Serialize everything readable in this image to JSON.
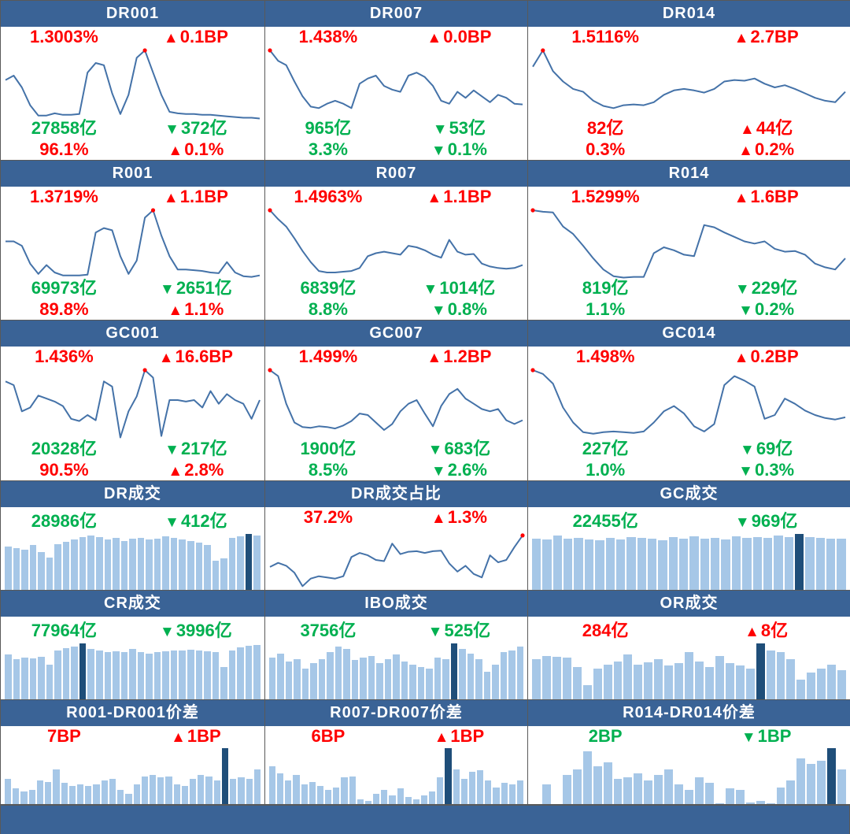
{
  "colors": {
    "header_bg": "#3A6396",
    "footer_bg": "#3A6396",
    "line": "#4472A8",
    "bar_light": "#A6C7E7",
    "bar_dark": "#1F4E79",
    "up_red": "#FF0000",
    "down_green": "#00B050",
    "marker": "#FF0000",
    "border": "#595959"
  },
  "icons": {
    "up": "▲",
    "down": "▼"
  },
  "chart_data": [
    {
      "title": "DR001",
      "type": "line",
      "panel_kind": "rate",
      "marker_index": 17,
      "values": [
        0.6,
        0.66,
        0.5,
        0.26,
        0.12,
        0.12,
        0.15,
        0.13,
        0.13,
        0.14,
        0.7,
        0.83,
        0.8,
        0.42,
        0.14,
        0.4,
        0.9,
        1.0,
        0.7,
        0.4,
        0.17,
        0.15,
        0.14,
        0.14,
        0.13,
        0.13,
        0.12,
        0.11,
        0.1,
        0.09,
        0.09,
        0.08
      ],
      "stats_top": {
        "left": {
          "text": "1.3003%",
          "color": "red"
        },
        "right": {
          "dir": "up",
          "text": "0.1BP",
          "color": "red"
        }
      },
      "stats_bottom": [
        {
          "left": {
            "text": "27858亿",
            "color": "green"
          },
          "right": {
            "dir": "down",
            "text": "372亿",
            "color": "green"
          }
        },
        {
          "left": {
            "text": "96.1%",
            "color": "red"
          },
          "right": {
            "dir": "up",
            "text": "0.1%",
            "color": "red"
          }
        }
      ]
    },
    {
      "title": "DR007",
      "type": "line",
      "panel_kind": "rate",
      "marker_index": 0,
      "values": [
        1.0,
        0.86,
        0.8,
        0.58,
        0.38,
        0.24,
        0.22,
        0.28,
        0.32,
        0.28,
        0.22,
        0.55,
        0.62,
        0.66,
        0.52,
        0.47,
        0.44,
        0.66,
        0.7,
        0.64,
        0.52,
        0.32,
        0.28,
        0.44,
        0.36,
        0.46,
        0.38,
        0.3,
        0.4,
        0.36,
        0.28,
        0.27
      ],
      "stats_top": {
        "left": {
          "text": "1.438%",
          "color": "red"
        },
        "right": {
          "dir": "up",
          "text": "0.0BP",
          "color": "red"
        }
      },
      "stats_bottom": [
        {
          "left": {
            "text": "965亿",
            "color": "green"
          },
          "right": {
            "dir": "down",
            "text": "53亿",
            "color": "green"
          }
        },
        {
          "left": {
            "text": "3.3%",
            "color": "green"
          },
          "right": {
            "dir": "down",
            "text": "0.1%",
            "color": "green"
          }
        }
      ]
    },
    {
      "title": "DR014",
      "type": "line",
      "panel_kind": "rate",
      "marker_index": 1,
      "values": [
        0.78,
        1.0,
        0.72,
        0.58,
        0.48,
        0.44,
        0.32,
        0.25,
        0.22,
        0.26,
        0.27,
        0.26,
        0.3,
        0.4,
        0.46,
        0.48,
        0.46,
        0.43,
        0.48,
        0.58,
        0.6,
        0.59,
        0.62,
        0.55,
        0.5,
        0.53,
        0.48,
        0.42,
        0.36,
        0.32,
        0.3,
        0.44
      ],
      "stats_top": {
        "left": {
          "text": "1.5116%",
          "color": "red"
        },
        "right": {
          "dir": "up",
          "text": "2.7BP",
          "color": "red"
        }
      },
      "stats_bottom": [
        {
          "left": {
            "text": "82亿",
            "color": "red"
          },
          "right": {
            "dir": "up",
            "text": "44亿",
            "color": "red"
          }
        },
        {
          "left": {
            "text": "0.3%",
            "color": "red"
          },
          "right": {
            "dir": "up",
            "text": "0.2%",
            "color": "red"
          }
        }
      ]
    },
    {
      "title": "R001",
      "type": "line",
      "panel_kind": "rate",
      "marker_index": 18,
      "values": [
        0.58,
        0.58,
        0.52,
        0.28,
        0.14,
        0.26,
        0.16,
        0.12,
        0.12,
        0.12,
        0.13,
        0.7,
        0.76,
        0.73,
        0.38,
        0.14,
        0.32,
        0.9,
        1.0,
        0.66,
        0.38,
        0.2,
        0.2,
        0.19,
        0.18,
        0.16,
        0.15,
        0.3,
        0.16,
        0.11,
        0.1,
        0.12
      ],
      "stats_top": {
        "left": {
          "text": "1.3719%",
          "color": "red"
        },
        "right": {
          "dir": "up",
          "text": "1.1BP",
          "color": "red"
        }
      },
      "stats_bottom": [
        {
          "left": {
            "text": "69973亿",
            "color": "green"
          },
          "right": {
            "dir": "down",
            "text": "2651亿",
            "color": "green"
          }
        },
        {
          "left": {
            "text": "89.8%",
            "color": "red"
          },
          "right": {
            "dir": "up",
            "text": "1.1%",
            "color": "red"
          }
        }
      ]
    },
    {
      "title": "R007",
      "type": "line",
      "panel_kind": "rate",
      "marker_index": 0,
      "values": [
        1.0,
        0.88,
        0.78,
        0.62,
        0.45,
        0.3,
        0.18,
        0.16,
        0.16,
        0.17,
        0.18,
        0.22,
        0.38,
        0.42,
        0.44,
        0.42,
        0.4,
        0.52,
        0.5,
        0.46,
        0.4,
        0.36,
        0.6,
        0.44,
        0.4,
        0.41,
        0.28,
        0.24,
        0.22,
        0.21,
        0.22,
        0.26
      ],
      "stats_top": {
        "left": {
          "text": "1.4963%",
          "color": "red"
        },
        "right": {
          "dir": "up",
          "text": "1.1BP",
          "color": "red"
        }
      },
      "stats_bottom": [
        {
          "left": {
            "text": "6839亿",
            "color": "green"
          },
          "right": {
            "dir": "down",
            "text": "1014亿",
            "color": "green"
          }
        },
        {
          "left": {
            "text": "8.8%",
            "color": "green"
          },
          "right": {
            "dir": "down",
            "text": "0.8%",
            "color": "green"
          }
        }
      ]
    },
    {
      "title": "R014",
      "type": "line",
      "panel_kind": "rate",
      "marker_index": 0,
      "values": [
        1.0,
        0.98,
        0.97,
        0.78,
        0.68,
        0.52,
        0.35,
        0.2,
        0.11,
        0.09,
        0.1,
        0.1,
        0.42,
        0.5,
        0.46,
        0.4,
        0.38,
        0.8,
        0.77,
        0.7,
        0.64,
        0.58,
        0.55,
        0.58,
        0.48,
        0.44,
        0.45,
        0.4,
        0.28,
        0.23,
        0.2,
        0.35
      ],
      "stats_top": {
        "left": {
          "text": "1.5299%",
          "color": "red"
        },
        "right": {
          "dir": "up",
          "text": "1.6BP",
          "color": "red"
        }
      },
      "stats_bottom": [
        {
          "left": {
            "text": "819亿",
            "color": "green"
          },
          "right": {
            "dir": "down",
            "text": "229亿",
            "color": "green"
          }
        },
        {
          "left": {
            "text": "1.1%",
            "color": "green"
          },
          "right": {
            "dir": "down",
            "text": "0.2%",
            "color": "green"
          }
        }
      ]
    },
    {
      "title": "GC001",
      "type": "line",
      "panel_kind": "rate",
      "marker_index": 17,
      "values": [
        0.85,
        0.8,
        0.45,
        0.5,
        0.66,
        0.62,
        0.58,
        0.52,
        0.35,
        0.32,
        0.4,
        0.33,
        0.85,
        0.78,
        0.1,
        0.45,
        0.65,
        1.0,
        0.9,
        0.12,
        0.6,
        0.6,
        0.58,
        0.6,
        0.5,
        0.72,
        0.55,
        0.68,
        0.6,
        0.55,
        0.35,
        0.6
      ],
      "stats_top": {
        "left": {
          "text": "1.436%",
          "color": "red"
        },
        "right": {
          "dir": "up",
          "text": "16.6BP",
          "color": "red"
        }
      },
      "stats_bottom": [
        {
          "left": {
            "text": "20328亿",
            "color": "green"
          },
          "right": {
            "dir": "down",
            "text": "217亿",
            "color": "green"
          }
        },
        {
          "left": {
            "text": "90.5%",
            "color": "red"
          },
          "right": {
            "dir": "up",
            "text": "2.8%",
            "color": "red"
          }
        }
      ]
    },
    {
      "title": "GC007",
      "type": "line",
      "panel_kind": "rate",
      "marker_index": 0,
      "values": [
        1.0,
        0.92,
        0.55,
        0.3,
        0.24,
        0.23,
        0.25,
        0.24,
        0.22,
        0.26,
        0.32,
        0.42,
        0.4,
        0.3,
        0.2,
        0.28,
        0.45,
        0.55,
        0.6,
        0.42,
        0.25,
        0.52,
        0.68,
        0.75,
        0.62,
        0.55,
        0.48,
        0.45,
        0.48,
        0.33,
        0.28,
        0.33
      ],
      "stats_top": {
        "left": {
          "text": "1.499%",
          "color": "red"
        },
        "right": {
          "dir": "up",
          "text": "1.2BP",
          "color": "red"
        }
      },
      "stats_bottom": [
        {
          "left": {
            "text": "1900亿",
            "color": "green"
          },
          "right": {
            "dir": "down",
            "text": "683亿",
            "color": "green"
          }
        },
        {
          "left": {
            "text": "8.5%",
            "color": "green"
          },
          "right": {
            "dir": "down",
            "text": "2.6%",
            "color": "green"
          }
        }
      ]
    },
    {
      "title": "GC014",
      "type": "line",
      "panel_kind": "rate",
      "marker_index": 0,
      "values": [
        1.0,
        0.95,
        0.82,
        0.5,
        0.3,
        0.17,
        0.15,
        0.17,
        0.18,
        0.17,
        0.16,
        0.18,
        0.3,
        0.45,
        0.52,
        0.42,
        0.25,
        0.18,
        0.28,
        0.8,
        0.92,
        0.86,
        0.78,
        0.35,
        0.4,
        0.62,
        0.55,
        0.46,
        0.4,
        0.36,
        0.34,
        0.37
      ],
      "stats_top": {
        "left": {
          "text": "1.498%",
          "color": "red"
        },
        "right": {
          "dir": "up",
          "text": "0.2BP",
          "color": "red"
        }
      },
      "stats_bottom": [
        {
          "left": {
            "text": "227亿",
            "color": "green"
          },
          "right": {
            "dir": "down",
            "text": "69亿",
            "color": "green"
          }
        },
        {
          "left": {
            "text": "1.0%",
            "color": "green"
          },
          "right": {
            "dir": "down",
            "text": "0.3%",
            "color": "green"
          }
        }
      ]
    },
    {
      "title": "DR成交",
      "type": "bar",
      "panel_kind": "volume",
      "dark_index": 29,
      "values": [
        0.78,
        0.75,
        0.72,
        0.8,
        0.68,
        0.58,
        0.82,
        0.86,
        0.9,
        0.95,
        0.97,
        0.95,
        0.9,
        0.93,
        0.88,
        0.91,
        0.93,
        0.9,
        0.92,
        0.96,
        0.93,
        0.9,
        0.87,
        0.84,
        0.8,
        0.52,
        0.57,
        0.93,
        0.96,
        1.0,
        0.97
      ],
      "stats_top": {
        "left": {
          "text": "28986亿",
          "color": "green"
        },
        "right": {
          "dir": "down",
          "text": "412亿",
          "color": "green"
        }
      }
    },
    {
      "title": "DR成交占比",
      "type": "line",
      "panel_kind": "volume",
      "marker_index": 31,
      "values": [
        0.38,
        0.45,
        0.4,
        0.28,
        0.05,
        0.18,
        0.22,
        0.2,
        0.18,
        0.22,
        0.55,
        0.62,
        0.58,
        0.5,
        0.48,
        0.78,
        0.6,
        0.64,
        0.65,
        0.62,
        0.65,
        0.66,
        0.44,
        0.3,
        0.4,
        0.26,
        0.2,
        0.58,
        0.46,
        0.5,
        0.72,
        0.92
      ],
      "stats_top": {
        "left": {
          "text": "37.2%",
          "color": "red"
        },
        "right": {
          "dir": "up",
          "text": "1.3%",
          "color": "red"
        }
      }
    },
    {
      "title": "GC成交",
      "type": "bar",
      "panel_kind": "volume",
      "dark_index": 25,
      "values": [
        0.92,
        0.9,
        0.97,
        0.91,
        0.93,
        0.9,
        0.89,
        0.93,
        0.9,
        0.95,
        0.93,
        0.91,
        0.89,
        0.95,
        0.92,
        0.96,
        0.91,
        0.93,
        0.9,
        0.96,
        0.93,
        0.95,
        0.93,
        0.97,
        0.94,
        1.0,
        0.95,
        0.93,
        0.91,
        0.92
      ],
      "stats_top": {
        "left": {
          "text": "22455亿",
          "color": "green"
        },
        "right": {
          "dir": "down",
          "text": "969亿",
          "color": "green"
        }
      }
    },
    {
      "title": "CR成交",
      "type": "bar",
      "panel_kind": "volume",
      "dark_index": 9,
      "values": [
        0.8,
        0.72,
        0.75,
        0.73,
        0.76,
        0.62,
        0.88,
        0.92,
        0.95,
        1.0,
        0.9,
        0.87,
        0.85,
        0.86,
        0.84,
        0.9,
        0.85,
        0.82,
        0.84,
        0.86,
        0.88,
        0.87,
        0.89,
        0.88,
        0.86,
        0.84,
        0.58,
        0.88,
        0.93,
        0.96,
        0.97
      ],
      "stats_top": {
        "left": {
          "text": "77964亿",
          "color": "green"
        },
        "right": {
          "dir": "down",
          "text": "3996亿",
          "color": "green"
        }
      }
    },
    {
      "title": "IBO成交",
      "type": "bar",
      "panel_kind": "volume",
      "dark_index": 22,
      "values": [
        0.75,
        0.82,
        0.68,
        0.72,
        0.55,
        0.65,
        0.72,
        0.85,
        0.95,
        0.9,
        0.7,
        0.75,
        0.78,
        0.65,
        0.72,
        0.8,
        0.68,
        0.62,
        0.58,
        0.55,
        0.75,
        0.72,
        1.0,
        0.9,
        0.82,
        0.72,
        0.5,
        0.62,
        0.85,
        0.88,
        0.95
      ],
      "stats_top": {
        "left": {
          "text": "3756亿",
          "color": "green"
        },
        "right": {
          "dir": "down",
          "text": "525亿",
          "color": "green"
        }
      }
    },
    {
      "title": "OR成交",
      "type": "bar",
      "panel_kind": "volume",
      "dark_index": 22,
      "values": [
        0.72,
        0.78,
        0.76,
        0.74,
        0.58,
        0.25,
        0.55,
        0.62,
        0.68,
        0.8,
        0.62,
        0.66,
        0.72,
        0.6,
        0.65,
        0.85,
        0.68,
        0.58,
        0.78,
        0.65,
        0.6,
        0.55,
        1.0,
        0.88,
        0.85,
        0.72,
        0.35,
        0.48,
        0.55,
        0.62,
        0.52
      ],
      "stats_top": {
        "left": {
          "text": "284亿",
          "color": "red"
        },
        "right": {
          "dir": "up",
          "text": "8亿",
          "color": "red"
        }
      }
    },
    {
      "title": "R001-DR001价差",
      "type": "bar",
      "panel_kind": "spread",
      "dark_index": 27,
      "values": [
        0.45,
        0.28,
        0.22,
        0.25,
        0.42,
        0.4,
        0.62,
        0.38,
        0.32,
        0.35,
        0.32,
        0.35,
        0.42,
        0.45,
        0.25,
        0.18,
        0.35,
        0.5,
        0.52,
        0.48,
        0.5,
        0.35,
        0.32,
        0.45,
        0.52,
        0.5,
        0.42,
        1.0,
        0.45,
        0.48,
        0.45,
        0.62
      ],
      "stats_top": {
        "left": {
          "text": "7BP",
          "color": "red"
        },
        "right": {
          "dir": "up",
          "text": "1BP",
          "color": "red"
        }
      }
    },
    {
      "title": "R007-DR007价差",
      "type": "bar",
      "panel_kind": "spread",
      "dark_index": 22,
      "values": [
        0.68,
        0.55,
        0.42,
        0.52,
        0.35,
        0.4,
        0.32,
        0.25,
        0.3,
        0.48,
        0.5,
        0.08,
        0.05,
        0.18,
        0.25,
        0.15,
        0.28,
        0.12,
        0.08,
        0.15,
        0.22,
        0.48,
        1.0,
        0.62,
        0.45,
        0.58,
        0.6,
        0.42,
        0.3,
        0.38,
        0.35,
        0.42
      ],
      "stats_top": {
        "left": {
          "text": "6BP",
          "color": "red"
        },
        "right": {
          "dir": "up",
          "text": "1BP",
          "color": "red"
        }
      }
    },
    {
      "title": "R014-DR014价差",
      "type": "bar",
      "panel_kind": "spread",
      "dark_index": 29,
      "values": [
        0.0,
        0.35,
        0.0,
        0.52,
        0.62,
        0.95,
        0.68,
        0.75,
        0.45,
        0.48,
        0.55,
        0.42,
        0.52,
        0.62,
        0.35,
        0.25,
        0.48,
        0.38,
        0.02,
        0.28,
        0.25,
        0.03,
        0.05,
        0.02,
        0.3,
        0.42,
        0.82,
        0.72,
        0.78,
        1.0,
        0.62
      ],
      "stats_top": {
        "left": {
          "text": "2BP",
          "color": "green"
        },
        "right": {
          "dir": "down",
          "text": "1BP",
          "color": "green"
        }
      }
    }
  ]
}
